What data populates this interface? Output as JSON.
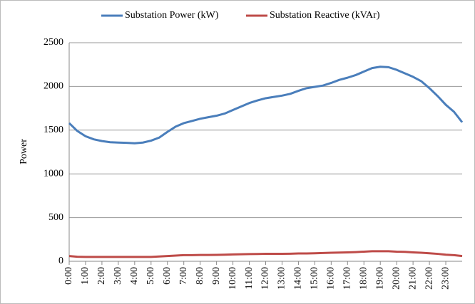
{
  "chart_data": {
    "type": "line",
    "ylabel": "Power",
    "categories": [
      "0:00",
      null,
      "1:00",
      null,
      "2:00",
      null,
      "3:00",
      null,
      "4:00",
      null,
      "5:00",
      null,
      "6:00",
      null,
      "7:00",
      null,
      "8:00",
      null,
      "9:00",
      null,
      "10:00",
      null,
      "11:00",
      null,
      "12:00",
      null,
      "13:00",
      null,
      "14:00",
      null,
      "15:00",
      null,
      "16:00",
      null,
      "17:00",
      null,
      "18:00",
      null,
      "19:00",
      null,
      "20:00",
      null,
      "21:00",
      null,
      "22:00",
      null,
      "23:00",
      null,
      null
    ],
    "series": [
      {
        "name": "Substation Power (kW)",
        "color": "#4a7ebb",
        "values": [
          1580,
          1490,
          1430,
          1395,
          1375,
          1362,
          1358,
          1355,
          1350,
          1358,
          1380,
          1415,
          1480,
          1540,
          1580,
          1605,
          1630,
          1648,
          1665,
          1690,
          1730,
          1770,
          1810,
          1840,
          1865,
          1880,
          1895,
          1915,
          1950,
          1980,
          1995,
          2010,
          2040,
          2075,
          2100,
          2130,
          2170,
          2210,
          2225,
          2220,
          2190,
          2150,
          2110,
          2060,
          1980,
          1890,
          1790,
          1710,
          1590
        ]
      },
      {
        "name": "Substation Reactive (kVAr)",
        "color": "#be4b48",
        "values": [
          60,
          52,
          50,
          50,
          50,
          50,
          50,
          50,
          50,
          50,
          50,
          55,
          60,
          65,
          70,
          70,
          72,
          72,
          73,
          75,
          78,
          80,
          82,
          83,
          85,
          85,
          86,
          87,
          90,
          90,
          92,
          95,
          98,
          100,
          102,
          105,
          110,
          115,
          115,
          115,
          110,
          108,
          102,
          98,
          92,
          85,
          75,
          70,
          60
        ]
      }
    ],
    "ylim": [
      0,
      2500
    ],
    "yticks": [
      0,
      500,
      1000,
      1500,
      2000,
      2500
    ],
    "grid": true
  }
}
